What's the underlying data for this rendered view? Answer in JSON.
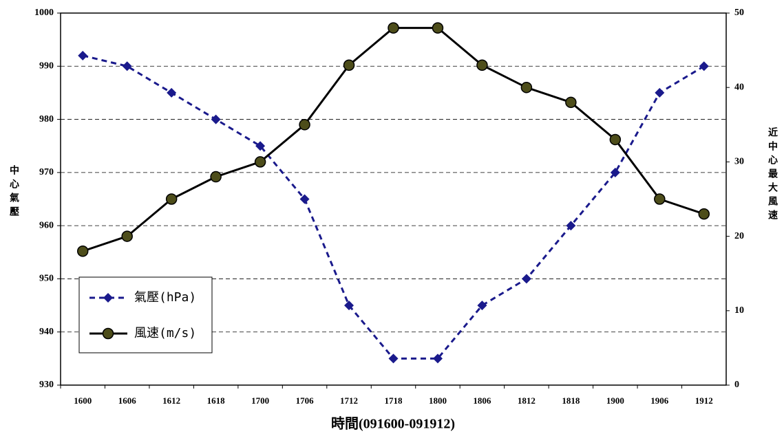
{
  "chart_data": {
    "type": "line",
    "x_label": "時間(091600-091912)",
    "y_label": "中心氣壓",
    "y2_label": "近中心最大風速",
    "categories": [
      "1600",
      "1606",
      "1612",
      "1618",
      "1700",
      "1706",
      "1712",
      "1718",
      "1800",
      "1806",
      "1812",
      "1818",
      "1900",
      "1906",
      "1912"
    ],
    "series": [
      {
        "name": "氣壓(hPa)",
        "color": "#1a1a8c",
        "marker": "diamond",
        "dashed": true,
        "axis": "y",
        "values": [
          992,
          990,
          985,
          980,
          975,
          965,
          945,
          935,
          935,
          945,
          950,
          960,
          970,
          985,
          990
        ]
      },
      {
        "name": "風速(m/s)",
        "color": "#000000",
        "marker_color": "#4d4d1a",
        "marker": "circle",
        "dashed": false,
        "axis": "y2",
        "values": [
          18,
          20,
          25,
          28,
          30,
          35,
          43,
          48,
          48,
          43,
          40,
          38,
          33,
          25,
          23
        ]
      }
    ],
    "ylim": [
      930,
      1000
    ],
    "yticks": [
      930,
      940,
      950,
      960,
      970,
      980,
      990,
      1000
    ],
    "y2lim": [
      0,
      50
    ],
    "y2ticks": [
      0,
      10,
      20,
      30,
      40,
      50
    ],
    "grid": true,
    "legend": "lower left"
  }
}
